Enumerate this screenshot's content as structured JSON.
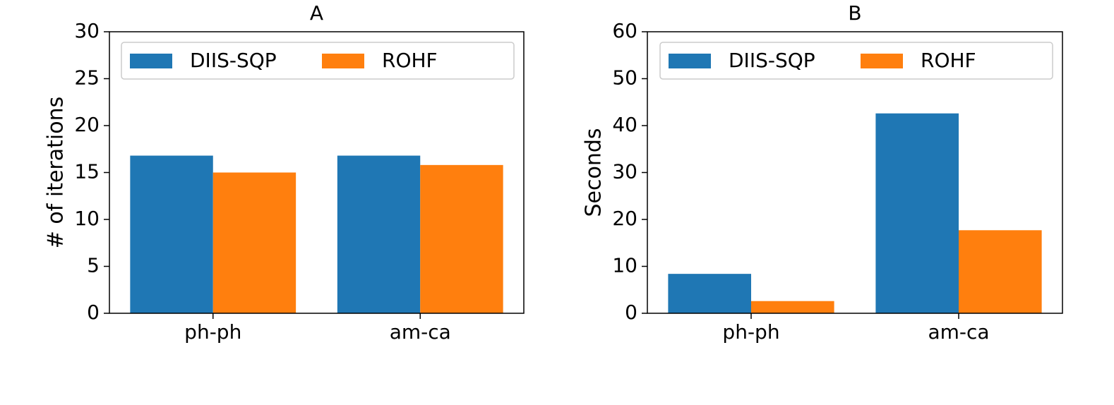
{
  "chart_data": [
    {
      "type": "bar",
      "title": "A",
      "ylabel": "# of iterations",
      "categories": [
        "ph-ph",
        "am-ca"
      ],
      "series": [
        {
          "name": "DIIS-SQP",
          "color": "#1f77b4",
          "values": [
            16.8,
            16.8
          ]
        },
        {
          "name": "ROHF",
          "color": "#ff7f0e",
          "values": [
            15.0,
            15.8
          ]
        }
      ],
      "ylim": [
        0,
        30
      ],
      "yticks": [
        0,
        5,
        10,
        15,
        20,
        25,
        30
      ],
      "legend": "upper right"
    },
    {
      "type": "bar",
      "title": "B",
      "ylabel": "Seconds",
      "categories": [
        "ph-ph",
        "am-ca"
      ],
      "series": [
        {
          "name": "DIIS-SQP",
          "color": "#1f77b4",
          "values": [
            8.4,
            42.6
          ]
        },
        {
          "name": "ROHF",
          "color": "#ff7f0e",
          "values": [
            2.6,
            17.7
          ]
        }
      ],
      "ylim": [
        0,
        60
      ],
      "yticks": [
        0,
        10,
        20,
        30,
        40,
        50,
        60
      ],
      "legend": "upper right"
    }
  ]
}
